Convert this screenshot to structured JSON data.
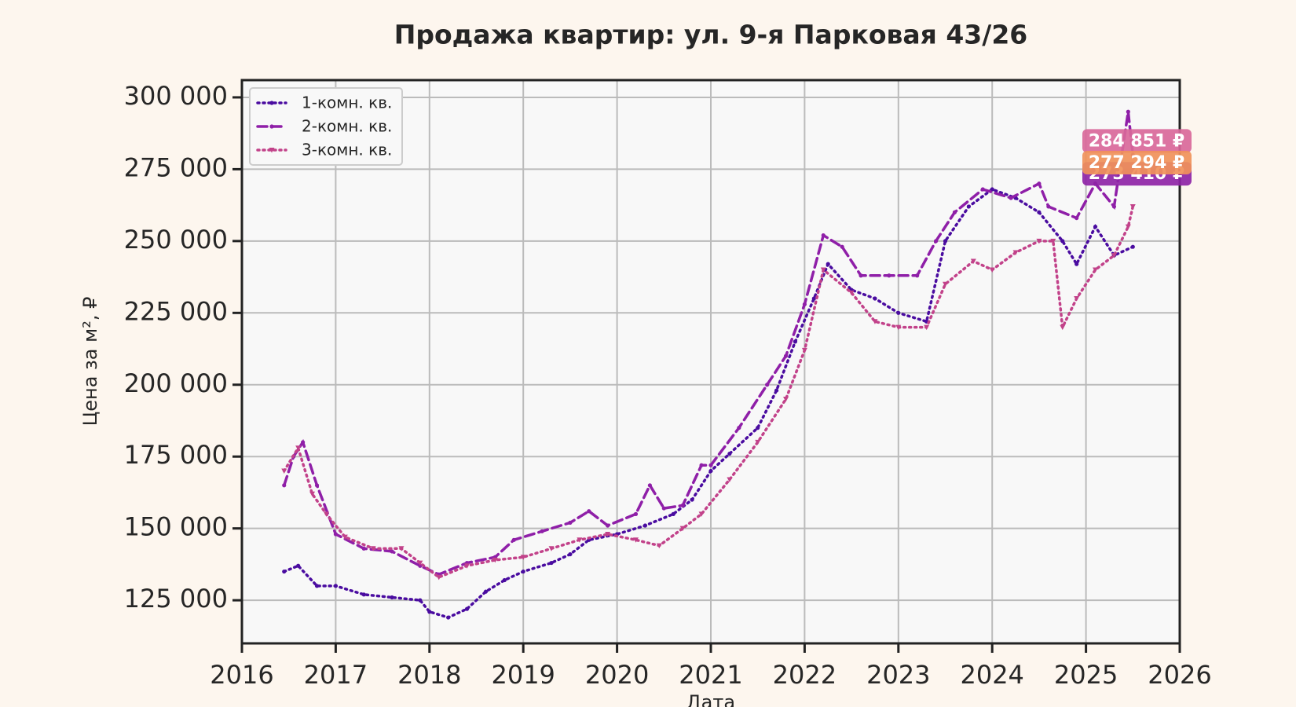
{
  "chart_data": {
    "type": "line",
    "title": "Продажа квартир: ул. 9-я Парковая 43/26",
    "x_label": "Дата",
    "y_label": "Цена за м², ₽",
    "xlim": [
      2016,
      2026
    ],
    "xticks": [
      2016,
      2017,
      2018,
      2019,
      2020,
      2021,
      2022,
      2023,
      2024,
      2025,
      2026
    ],
    "ylim": [
      110000,
      306000
    ],
    "yticks": [
      {
        "value": 125000,
        "label": "125 000"
      },
      {
        "value": 150000,
        "label": "150 000"
      },
      {
        "value": 175000,
        "label": "175 000"
      },
      {
        "value": 200000,
        "label": "200 000"
      },
      {
        "value": 225000,
        "label": "225 000"
      },
      {
        "value": 250000,
        "label": "250 000"
      },
      {
        "value": 275000,
        "label": "275 000"
      },
      {
        "value": 300000,
        "label": "300 000"
      }
    ],
    "grid": true,
    "legend": "upper left",
    "series": [
      {
        "name": "1-комн. кв.",
        "color": "#4a0ca0",
        "style": "dotted",
        "marker": "circle",
        "x": [
          2016.45,
          2016.6,
          2016.8,
          2017.0,
          2017.3,
          2017.6,
          2017.9,
          2018.0,
          2018.2,
          2018.4,
          2018.6,
          2018.8,
          2019.0,
          2019.3,
          2019.5,
          2019.7,
          2020.0,
          2020.3,
          2020.6,
          2020.8,
          2021.0,
          2021.2,
          2021.5,
          2021.7,
          2021.9,
          2022.1,
          2022.25,
          2022.5,
          2022.75,
          2023.0,
          2023.3,
          2023.5,
          2023.75,
          2024.0,
          2024.25,
          2024.5,
          2024.75,
          2024.9,
          2025.1,
          2025.3,
          2025.5
        ],
        "values": [
          135000,
          137000,
          130000,
          130000,
          127000,
          126000,
          125000,
          121000,
          119000,
          122000,
          128000,
          132000,
          135000,
          138000,
          141000,
          146000,
          148000,
          151000,
          155000,
          160000,
          170000,
          176000,
          185000,
          198000,
          215000,
          230000,
          242000,
          233000,
          230000,
          225000,
          222000,
          250000,
          262000,
          268000,
          265000,
          260000,
          250000,
          242000,
          255000,
          245000,
          248000
        ]
      },
      {
        "name": "2-комн. кв.",
        "color": "#8f1fa8",
        "style": "dashed",
        "marker": "circle",
        "x": [
          2016.45,
          2016.55,
          2016.65,
          2016.8,
          2017.0,
          2017.3,
          2017.6,
          2017.9,
          2018.1,
          2018.4,
          2018.7,
          2018.9,
          2019.2,
          2019.5,
          2019.7,
          2019.9,
          2020.2,
          2020.35,
          2020.5,
          2020.7,
          2020.9,
          2021.0,
          2021.3,
          2021.6,
          2021.8,
          2022.0,
          2022.2,
          2022.4,
          2022.6,
          2022.9,
          2023.2,
          2023.4,
          2023.6,
          2023.9,
          2024.2,
          2024.5,
          2024.6,
          2024.9,
          2025.1,
          2025.3,
          2025.45,
          2025.5
        ],
        "values": [
          165000,
          175000,
          180000,
          165000,
          148000,
          143000,
          142000,
          137000,
          134000,
          138000,
          140000,
          146000,
          149000,
          152000,
          156000,
          151000,
          155000,
          165000,
          157000,
          158000,
          172000,
          172000,
          185000,
          200000,
          210000,
          228000,
          252000,
          248000,
          238000,
          238000,
          238000,
          250000,
          260000,
          268000,
          265000,
          270000,
          262000,
          258000,
          270000,
          262000,
          295000,
          280000
        ]
      },
      {
        "name": "3-комн. кв.",
        "color": "#c2428a",
        "style": "dotted",
        "marker": "triangle",
        "x": [
          2016.45,
          2016.6,
          2016.75,
          2016.9,
          2017.1,
          2017.4,
          2017.7,
          2017.9,
          2018.1,
          2018.4,
          2018.7,
          2019.0,
          2019.3,
          2019.6,
          2019.9,
          2020.2,
          2020.45,
          2020.7,
          2020.9,
          2021.2,
          2021.5,
          2021.8,
          2022.0,
          2022.2,
          2022.5,
          2022.75,
          2023.0,
          2023.3,
          2023.5,
          2023.8,
          2024.0,
          2024.25,
          2024.5,
          2024.65,
          2024.75,
          2024.9,
          2025.1,
          2025.3,
          2025.45,
          2025.5
        ],
        "values": [
          170000,
          178000,
          162000,
          155000,
          147000,
          143000,
          143000,
          138000,
          133000,
          137000,
          139000,
          140000,
          143000,
          146000,
          148000,
          146000,
          144000,
          150000,
          155000,
          167000,
          180000,
          195000,
          212000,
          240000,
          232000,
          222000,
          220000,
          220000,
          235000,
          243000,
          240000,
          246000,
          250000,
          250000,
          220000,
          230000,
          240000,
          245000,
          255000,
          262000
        ]
      }
    ],
    "annotations": [
      {
        "text": "273 410 ₽",
        "value": 273410,
        "color": "#8e24a6"
      },
      {
        "text": "284 851 ₽",
        "value": 284851,
        "color": "#d9689a"
      },
      {
        "text": "277 294 ₽",
        "value": 277294,
        "color": "#f0915a"
      }
    ]
  }
}
